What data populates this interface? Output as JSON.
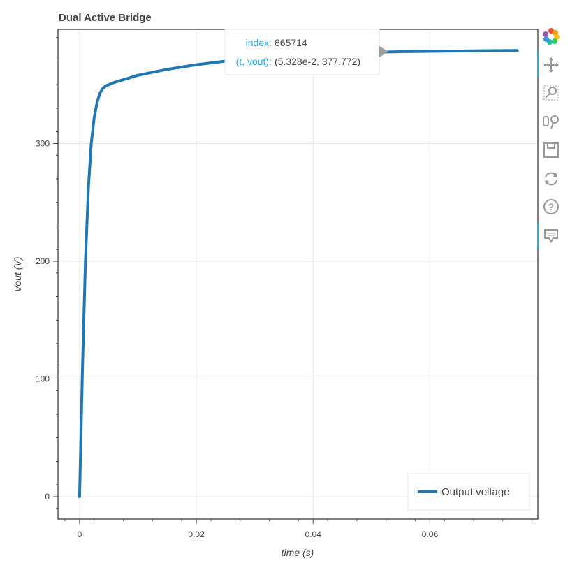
{
  "chart_data": {
    "type": "line",
    "title": "Dual Active Bridge",
    "xlabel": "time (s)",
    "ylabel": "Vout (V)",
    "xlim": [
      -0.0037,
      0.0785
    ],
    "ylim": [
      -19,
      397
    ],
    "x_ticks": [
      0,
      0.02,
      0.04,
      0.06
    ],
    "x_tick_labels": [
      "0",
      "0.02",
      "0.04",
      "0.06"
    ],
    "y_ticks": [
      0,
      100,
      200,
      300
    ],
    "y_tick_labels": [
      "0",
      "100",
      "200",
      "300"
    ],
    "grid": true,
    "legend_position": "bottom-right",
    "series": [
      {
        "name": "Output voltage",
        "color": "#1f77b4",
        "x": [
          0,
          0.0005,
          0.001,
          0.0015,
          0.002,
          0.0025,
          0.003,
          0.0035,
          0.004,
          0.0045,
          0.005,
          0.006,
          0.008,
          0.01,
          0.015,
          0.02,
          0.025,
          0.03,
          0.035,
          0.04,
          0.045,
          0.05,
          0.053,
          0.055,
          0.06,
          0.065,
          0.07,
          0.075
        ],
        "y": [
          0,
          110,
          200,
          262,
          300,
          322,
          335,
          343,
          347,
          349,
          350,
          352,
          355,
          358,
          363,
          367,
          370,
          372,
          374,
          375.5,
          376.5,
          377.2,
          377.8,
          378,
          378.3,
          378.6,
          378.9,
          379
        ]
      }
    ]
  },
  "tooltip": {
    "index_label": "index:",
    "index_value": "865714",
    "point_label": "(t, vout):",
    "point_value": "(5.328e-2, 377.772)"
  },
  "toolbar": {
    "tools": [
      "bokeh-logo-icon",
      "pan-icon",
      "box-zoom-icon",
      "wheel-zoom-icon",
      "save-icon",
      "reset-icon",
      "help-icon",
      "hover-icon"
    ]
  }
}
